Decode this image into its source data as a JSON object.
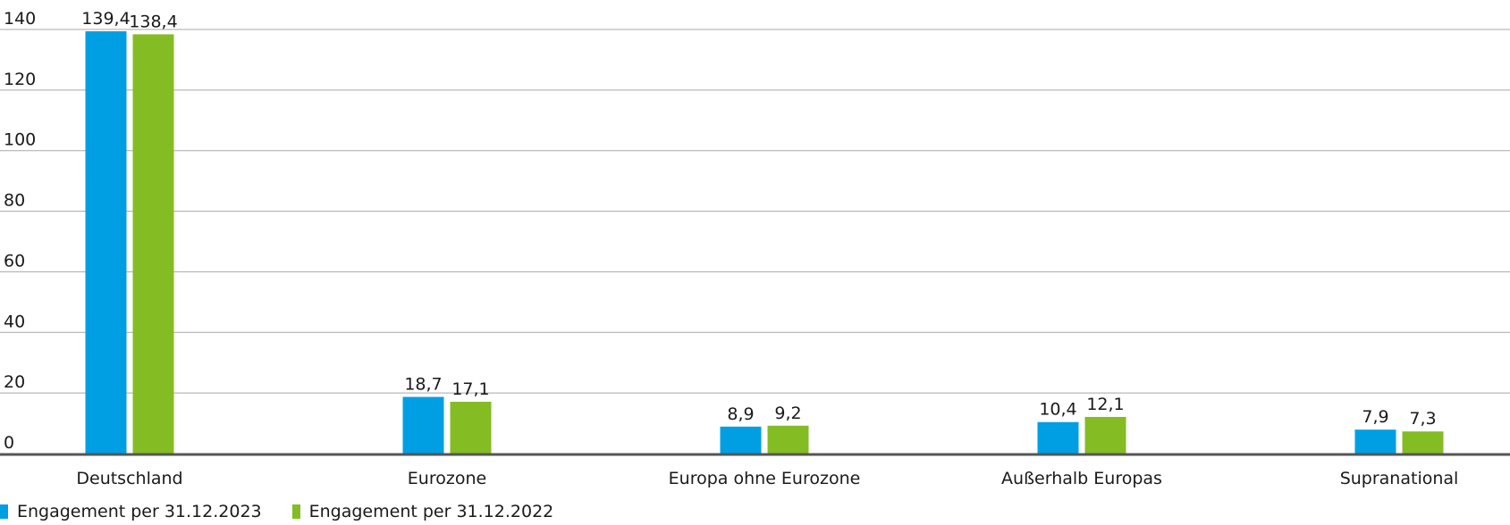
{
  "chart_data": {
    "type": "bar",
    "categories": [
      "Deutschland",
      "Eurozone",
      "Europa ohne Eurozone",
      "Außerhalb Europas",
      "Supranational"
    ],
    "series": [
      {
        "name": "Engagement per 31.12.2023",
        "values": [
          139.4,
          18.7,
          8.9,
          10.4,
          7.9
        ],
        "labels": [
          "139,4",
          "18,7",
          "8,9",
          "10,4",
          "7,9"
        ],
        "color": "#009fe3"
      },
      {
        "name": "Engagement per 31.12.2022",
        "values": [
          138.4,
          17.1,
          9.2,
          12.1,
          7.3
        ],
        "labels": [
          "138,4",
          "17,1",
          "9,2",
          "12,1",
          "7,3"
        ],
        "color": "#84bc24"
      }
    ],
    "ylim": [
      0,
      140
    ],
    "yticks": [
      "0",
      "20",
      "40",
      "60",
      "80",
      "100",
      "120",
      "140"
    ],
    "grid": true,
    "legend_position": "bottom-left",
    "title": "",
    "xlabel": "",
    "ylabel": ""
  }
}
